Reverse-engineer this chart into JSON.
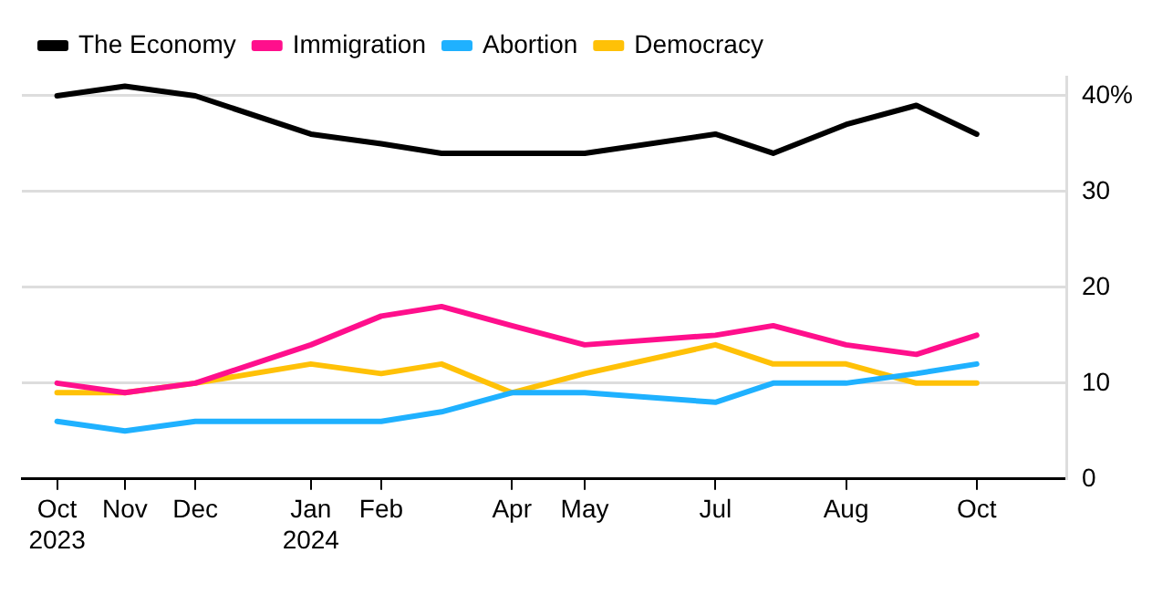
{
  "chart_data": {
    "type": "line",
    "x": [
      "2023-10-15",
      "2023-11-11",
      "2023-12-09",
      "2024-01-24",
      "2024-02-21",
      "2024-03-16",
      "2024-04-13",
      "2024-05-12",
      "2024-07-03",
      "2024-07-26",
      "2024-08-24",
      "2024-09-21",
      "2024-10-15"
    ],
    "series": [
      {
        "name": "The Economy",
        "color": "#000000",
        "values": [
          40,
          41,
          40,
          36,
          35,
          34,
          34,
          34,
          36,
          34,
          37,
          39,
          36
        ]
      },
      {
        "name": "Immigration",
        "color": "#ff0f8c",
        "values": [
          10,
          9,
          10,
          14,
          17,
          18,
          16,
          14,
          15,
          16,
          14,
          13,
          15
        ]
      },
      {
        "name": "Abortion",
        "color": "#1fb1ff",
        "values": [
          6,
          5,
          6,
          6,
          6,
          7,
          9,
          9,
          8,
          10,
          10,
          11,
          12
        ]
      },
      {
        "name": "Democracy",
        "color": "#ffc107",
        "values": [
          9,
          9,
          10,
          12,
          11,
          12,
          9,
          11,
          14,
          12,
          12,
          10,
          10
        ]
      }
    ],
    "xticks": [
      {
        "value": "2023-10-15",
        "label": "Oct\n2023"
      },
      {
        "value": "2023-11-11",
        "label": "Nov"
      },
      {
        "value": "2023-12-09",
        "label": "Dec"
      },
      {
        "value": "2024-01-24",
        "label": "Jan\n2024"
      },
      {
        "value": "2024-02-21",
        "label": "Feb"
      },
      {
        "value": "2024-04-13",
        "label": "Apr"
      },
      {
        "value": "2024-05-12",
        "label": "May"
      },
      {
        "value": "2024-07-03",
        "label": "Jul"
      },
      {
        "value": "2024-08-24",
        "label": "Aug"
      },
      {
        "value": "2024-10-15",
        "label": "Oct"
      }
    ],
    "xlim": [
      "2023-10-01",
      "2024-11-20"
    ],
    "ylim": [
      0,
      42
    ],
    "yticks": [
      0,
      10,
      20,
      30,
      {
        "value": 40,
        "label": "40%"
      }
    ],
    "grid": "y",
    "legend": "top left",
    "marker": "none",
    "line_style": "solid"
  }
}
